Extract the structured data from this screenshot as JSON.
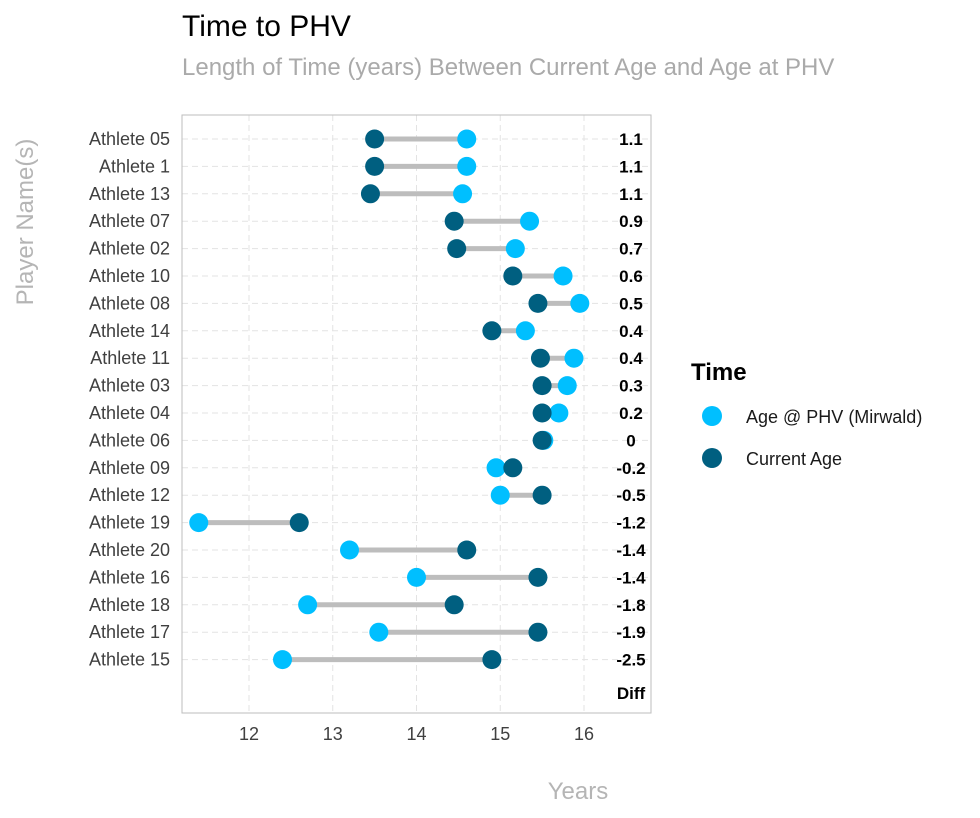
{
  "chart_data": {
    "type": "dumbbell",
    "title": "Time to PHV",
    "subtitle": "Length of Time (years) Between Current Age and Age at PHV",
    "xlabel": "Years",
    "ylabel": "Player Name(s)",
    "xlim": [
      11.2,
      16.8
    ],
    "xticks": [
      12,
      13,
      14,
      15,
      16
    ],
    "grid": true,
    "diff_label": "Diff",
    "legend": {
      "title": "Time",
      "placement": "right",
      "entries": [
        {
          "label": "Age @ PHV (Mirwald)",
          "color": "#00bfff"
        },
        {
          "label": "Current Age",
          "color": "#005f80"
        }
      ]
    },
    "colors": {
      "phv": "#00bfff",
      "current": "#005f80",
      "segment": "#bdbdbd"
    },
    "athletes": [
      {
        "name": "Athlete 05",
        "current": 13.5,
        "phv": 14.6,
        "diff": "1.1"
      },
      {
        "name": "Athlete 1",
        "current": 13.5,
        "phv": 14.6,
        "diff": "1.1"
      },
      {
        "name": "Athlete 13",
        "current": 13.45,
        "phv": 14.55,
        "diff": "1.1"
      },
      {
        "name": "Athlete 07",
        "current": 14.45,
        "phv": 15.35,
        "diff": "0.9"
      },
      {
        "name": "Athlete 02",
        "current": 14.48,
        "phv": 15.18,
        "diff": "0.7"
      },
      {
        "name": "Athlete 10",
        "current": 15.15,
        "phv": 15.75,
        "diff": "0.6"
      },
      {
        "name": "Athlete 08",
        "current": 15.45,
        "phv": 15.95,
        "diff": "0.5"
      },
      {
        "name": "Athlete 14",
        "current": 14.9,
        "phv": 15.3,
        "diff": "0.4"
      },
      {
        "name": "Athlete 11",
        "current": 15.48,
        "phv": 15.88,
        "diff": "0.4"
      },
      {
        "name": "Athlete 03",
        "current": 15.5,
        "phv": 15.8,
        "diff": "0.3"
      },
      {
        "name": "Athlete 04",
        "current": 15.5,
        "phv": 15.7,
        "diff": "0.2"
      },
      {
        "name": "Athlete 06",
        "current": 15.5,
        "phv": 15.52,
        "diff": "0"
      },
      {
        "name": "Athlete 09",
        "current": 15.15,
        "phv": 14.95,
        "diff": "-0.2"
      },
      {
        "name": "Athlete 12",
        "current": 15.5,
        "phv": 15.0,
        "diff": "-0.5"
      },
      {
        "name": "Athlete 19",
        "current": 12.6,
        "phv": 11.4,
        "diff": "-1.2"
      },
      {
        "name": "Athlete 20",
        "current": 14.6,
        "phv": 13.2,
        "diff": "-1.4"
      },
      {
        "name": "Athlete 16",
        "current": 15.45,
        "phv": 14.0,
        "diff": "-1.4"
      },
      {
        "name": "Athlete 18",
        "current": 14.45,
        "phv": 12.7,
        "diff": "-1.8"
      },
      {
        "name": "Athlete 17",
        "current": 15.45,
        "phv": 13.55,
        "diff": "-1.9"
      },
      {
        "name": "Athlete 15",
        "current": 14.9,
        "phv": 12.4,
        "diff": "-2.5"
      }
    ]
  }
}
